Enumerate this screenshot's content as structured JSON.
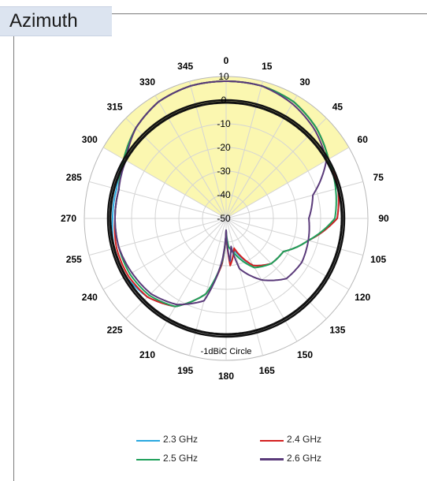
{
  "title": "Azimuth",
  "chart_data": {
    "type": "polar",
    "title": "Azimuth",
    "angle_ticks": [
      "0",
      "15",
      "30",
      "45",
      "60",
      "75",
      "90",
      "105",
      "120",
      "135",
      "150",
      "165",
      "180",
      "195",
      "210",
      "225",
      "240",
      "255",
      "270",
      "285",
      "300",
      "315",
      "330",
      "345"
    ],
    "radial_ticks": [
      "10",
      "0",
      "-10",
      "-20",
      "-30",
      "-40",
      "-50"
    ],
    "radial_range": [
      -50,
      10
    ],
    "highlighted_sector_deg": [
      300,
      60
    ],
    "annotation": "-1dBiC Circle",
    "reference_circle_dbic": -1,
    "legend_placement": "bottom",
    "series": [
      {
        "name": "2.3 GHz",
        "color": "#29a8e0",
        "angles": [
          0,
          15,
          30,
          45,
          60,
          75,
          90,
          105,
          120,
          135,
          150,
          165,
          175,
          180,
          185,
          195,
          210,
          225,
          240,
          255,
          270,
          285,
          300,
          315,
          330,
          345
        ],
        "values": [
          8,
          8,
          7,
          4,
          0,
          -1,
          -3,
          -14,
          -22,
          -23,
          -27,
          -36,
          -31,
          -45,
          -31,
          -17,
          -7,
          -3,
          -1,
          -1,
          -2,
          -2,
          0,
          4,
          7,
          8
        ]
      },
      {
        "name": "2.4 GHz",
        "color": "#d42020",
        "angles": [
          0,
          15,
          30,
          45,
          60,
          75,
          90,
          105,
          120,
          135,
          150,
          165,
          175,
          180,
          185,
          195,
          210,
          225,
          240,
          255,
          270,
          285,
          300,
          315,
          330,
          345
        ],
        "values": [
          8,
          8,
          7,
          4,
          0,
          -1,
          -3,
          -14,
          -22,
          -23,
          -27,
          -37,
          -30,
          -45,
          -31,
          -17,
          -7,
          -3,
          -2,
          -2,
          -3,
          -3,
          0,
          4,
          7,
          8
        ]
      },
      {
        "name": "2.5 GHz",
        "color": "#1fa05a",
        "angles": [
          0,
          15,
          30,
          45,
          60,
          75,
          90,
          105,
          120,
          135,
          150,
          165,
          175,
          180,
          185,
          195,
          210,
          225,
          240,
          255,
          270,
          285,
          300,
          315,
          330,
          345
        ],
        "values": [
          8,
          8,
          7,
          4,
          0,
          -2,
          -4,
          -14,
          -22,
          -23,
          -26,
          -34,
          -38,
          -45,
          -32,
          -17,
          -7,
          -4,
          -3,
          -3,
          -3,
          -3,
          0,
          4,
          7,
          8
        ]
      },
      {
        "name": "2.6 GHz",
        "color": "#5a3a7a",
        "angles": [
          0,
          15,
          30,
          45,
          60,
          75,
          90,
          105,
          120,
          135,
          150,
          165,
          170,
          175,
          180,
          185,
          195,
          210,
          225,
          240,
          255,
          270,
          285,
          300,
          315,
          330,
          345
        ],
        "values": [
          8,
          8,
          6,
          3,
          -1,
          -12,
          -15,
          -14,
          -13,
          -14,
          -20,
          -28,
          -38,
          -32,
          -45,
          -33,
          -14,
          -8,
          -5,
          -4,
          -3,
          -3,
          -3,
          -1,
          4,
          7,
          8
        ]
      },
      {
        "name": "-1dBiC Circle",
        "color": "#111111",
        "angles": [
          0,
          90,
          180,
          270
        ],
        "values": [
          -1,
          -1,
          -1,
          -1
        ]
      }
    ]
  }
}
